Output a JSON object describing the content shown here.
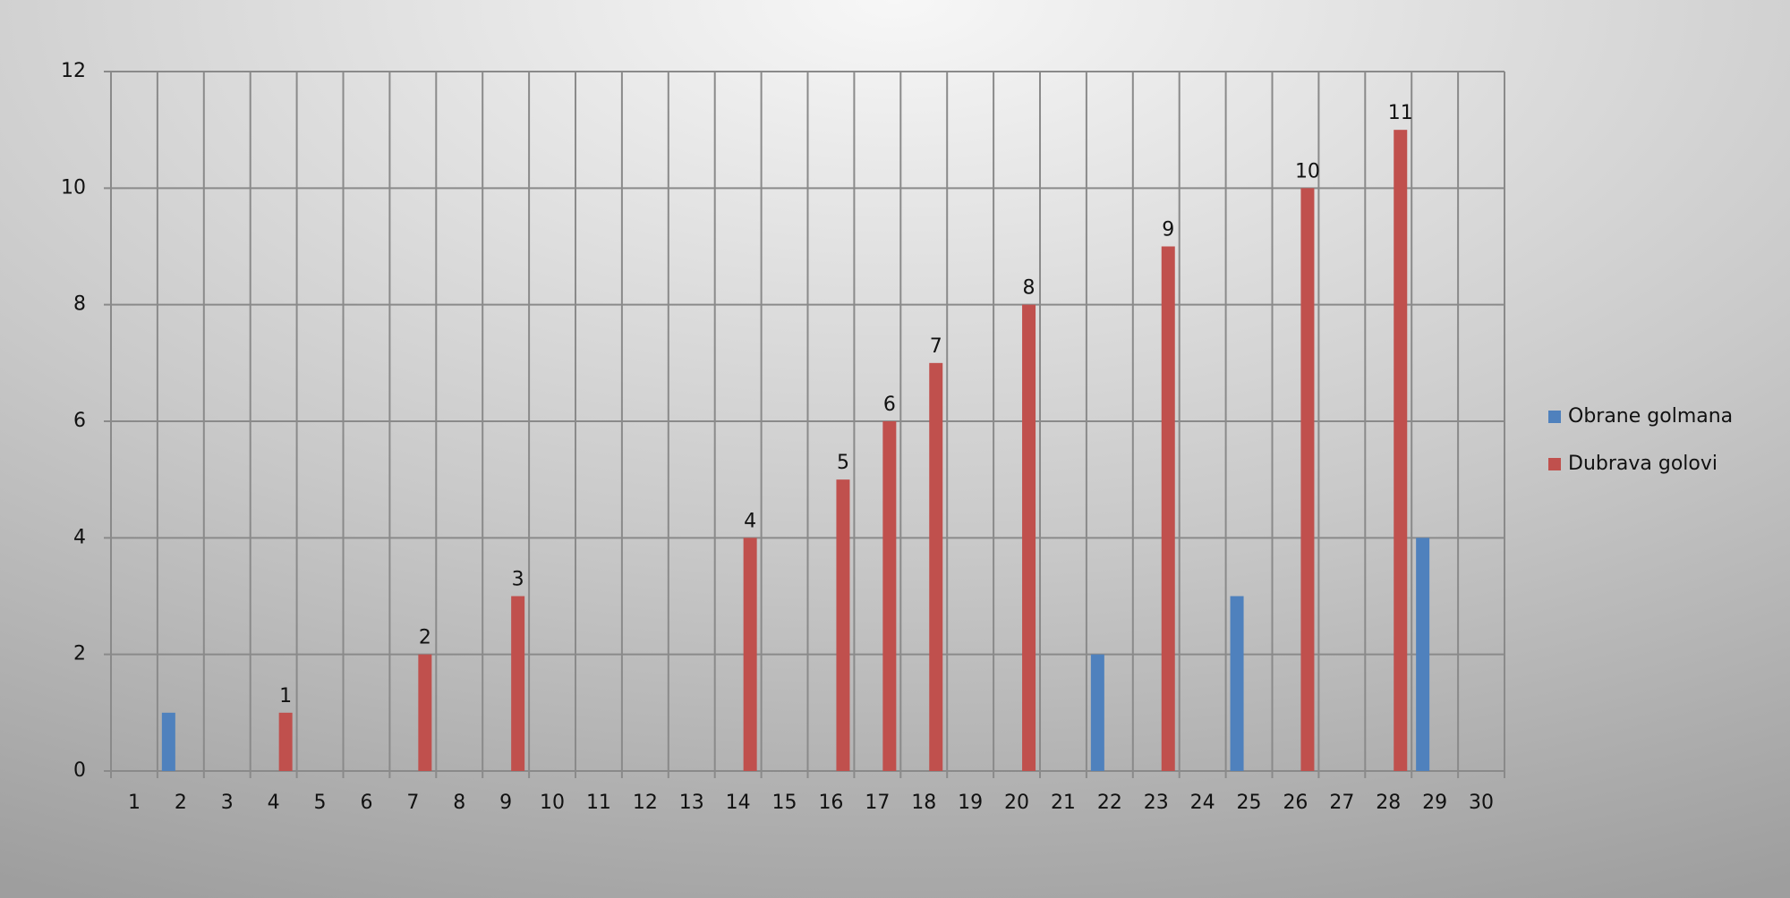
{
  "chart_data": {
    "type": "bar",
    "categories": [
      "1",
      "2",
      "3",
      "4",
      "5",
      "6",
      "7",
      "8",
      "9",
      "10",
      "11",
      "12",
      "13",
      "14",
      "15",
      "16",
      "17",
      "18",
      "19",
      "20",
      "21",
      "22",
      "23",
      "24",
      "25",
      "26",
      "27",
      "28",
      "29",
      "30"
    ],
    "series": [
      {
        "name": "Obrane golmana",
        "color": "#4f81bd",
        "data_labels": false,
        "values": [
          null,
          1,
          null,
          null,
          null,
          null,
          null,
          null,
          null,
          null,
          null,
          null,
          null,
          null,
          null,
          null,
          null,
          null,
          null,
          null,
          null,
          2,
          null,
          null,
          3,
          null,
          null,
          null,
          4,
          null
        ]
      },
      {
        "name": "Dubrava golovi",
        "color": "#c0504d",
        "data_labels": true,
        "values": [
          null,
          null,
          null,
          1,
          null,
          null,
          2,
          null,
          3,
          null,
          null,
          null,
          null,
          4,
          null,
          5,
          6,
          7,
          null,
          8,
          null,
          null,
          9,
          null,
          null,
          10,
          null,
          11,
          null,
          null
        ]
      }
    ],
    "ylim": [
      0,
      12
    ],
    "yticks": [
      0,
      2,
      4,
      6,
      8,
      10,
      12
    ],
    "grid": true,
    "legend": "right"
  }
}
